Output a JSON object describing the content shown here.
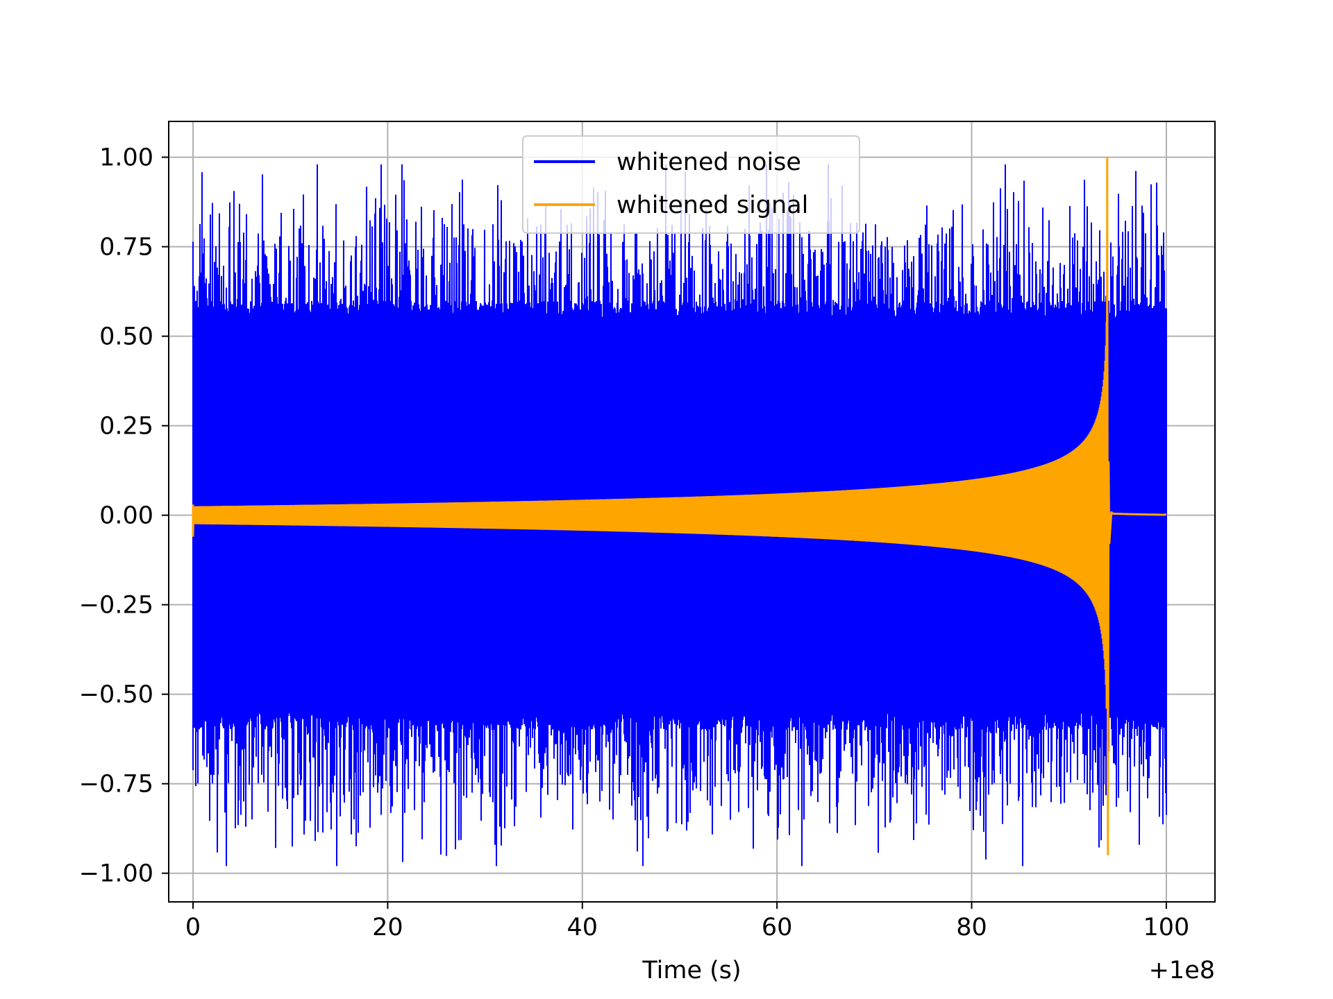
{
  "chart_data": {
    "type": "line",
    "title": "",
    "xlabel": "Time (s)",
    "ylabel": "",
    "x_offset_label": "+1e8",
    "xlim": [
      -2.5,
      105
    ],
    "ylim": [
      -1.08,
      1.1
    ],
    "xticks": [
      0,
      20,
      40,
      60,
      80,
      100
    ],
    "xtick_labels": [
      "0",
      "20",
      "40",
      "60",
      "80",
      "100"
    ],
    "yticks": [
      -1.0,
      -0.75,
      -0.5,
      -0.25,
      0.0,
      0.25,
      0.5,
      0.75,
      1.0
    ],
    "ytick_labels": [
      "−1.00",
      "−0.75",
      "−0.50",
      "−0.25",
      "0.00",
      "0.25",
      "0.50",
      "0.75",
      "1.00"
    ],
    "grid": true,
    "legend_position": "top-center",
    "series": [
      {
        "name": "whitened noise",
        "color": "#0000ff",
        "x_range": [
          0,
          100
        ],
        "typical_amplitude": 0.6,
        "peak_max": 0.98,
        "peak_min": -0.98
      },
      {
        "name": "whitened signal",
        "color": "#ffa500",
        "x_range": [
          0,
          100
        ],
        "x_merger": 94,
        "amplitude_start": 0.025,
        "amplitude_peak": 1.0,
        "amplitude_min_peak": -0.95,
        "amplitude_after_merger": 0.005
      }
    ]
  }
}
